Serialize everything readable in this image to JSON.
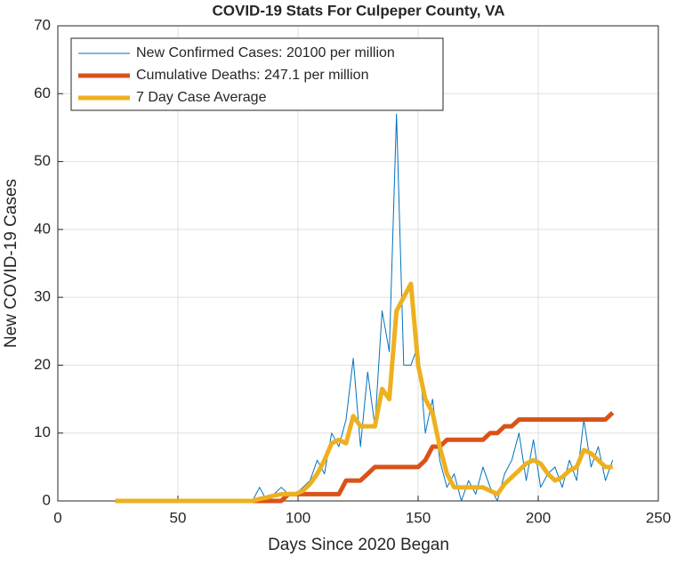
{
  "chart_data": {
    "type": "line",
    "title": "COVID-19 Stats For Culpeper County, VA",
    "x_label": "Days Since 2020 Began",
    "y_label": "New COVID-19 Cases",
    "x": [
      24,
      27,
      30,
      33,
      36,
      39,
      42,
      45,
      48,
      51,
      54,
      57,
      60,
      63,
      66,
      69,
      72,
      75,
      78,
      81,
      84,
      87,
      90,
      93,
      96,
      99,
      102,
      105,
      108,
      111,
      114,
      117,
      120,
      123,
      126,
      129,
      132,
      135,
      138,
      141,
      144,
      147,
      150,
      153,
      156,
      159,
      162,
      165,
      168,
      171,
      174,
      177,
      180,
      183,
      186,
      189,
      192,
      195,
      198,
      201,
      204,
      207,
      210,
      213,
      216,
      219,
      222,
      225,
      228,
      231
    ],
    "series": [
      {
        "name": "New Confirmed Cases: 20100 per million",
        "color": "#0072bd",
        "width": 1,
        "values": [
          0,
          0,
          0,
          0,
          0,
          0,
          0,
          0,
          0,
          0,
          0,
          0,
          0,
          0,
          0,
          0,
          0,
          0,
          0,
          0,
          2,
          0,
          1,
          2,
          1,
          1,
          2,
          3,
          6,
          4,
          10,
          8,
          12,
          21,
          8,
          19,
          11,
          28,
          22,
          57,
          20,
          20,
          23,
          10,
          15,
          6,
          2,
          4,
          0,
          3,
          1,
          5,
          2,
          0,
          4,
          6,
          10,
          3,
          9,
          2,
          4,
          5,
          2,
          6,
          3,
          12,
          5,
          8,
          3,
          6
        ]
      },
      {
        "name": "Cumulative Deaths: 247.1 per million",
        "color": "#d95319",
        "width": 5,
        "values": [
          0,
          0,
          0,
          0,
          0,
          0,
          0,
          0,
          0,
          0,
          0,
          0,
          0,
          0,
          0,
          0,
          0,
          0,
          0,
          0,
          0,
          0,
          0,
          0,
          1,
          1,
          1,
          1,
          1,
          1,
          1,
          1,
          3,
          3,
          3,
          4,
          5,
          5,
          5,
          5,
          5,
          5,
          5,
          6,
          8,
          8,
          9,
          9,
          9,
          9,
          9,
          9,
          10,
          10,
          11,
          11,
          12,
          12,
          12,
          12,
          12,
          12,
          12,
          12,
          12,
          12,
          12,
          12,
          12,
          13
        ]
      },
      {
        "name": "7 Day Case Average",
        "color": "#edb120",
        "width": 5,
        "values": [
          0,
          0,
          0,
          0,
          0,
          0,
          0,
          0,
          0,
          0,
          0,
          0,
          0,
          0,
          0,
          0,
          0,
          0,
          0,
          0,
          0.3,
          0.5,
          0.8,
          1,
          1,
          1,
          1.5,
          2.5,
          4,
          6,
          8.5,
          9,
          8.5,
          12.5,
          11,
          11,
          11,
          16.5,
          15,
          28,
          30,
          32,
          20,
          15,
          13,
          8,
          4,
          2,
          2,
          2,
          2,
          2,
          1.5,
          1,
          2.5,
          3.5,
          4.5,
          5.5,
          6,
          5.5,
          4,
          3,
          3.5,
          4.5,
          5,
          7.5,
          7,
          6,
          5,
          5
        ]
      }
    ],
    "xlim": [
      0,
      250
    ],
    "xticks": [
      0,
      50,
      100,
      150,
      200,
      250
    ],
    "ylim": [
      0,
      70
    ],
    "yticks": [
      0,
      10,
      20,
      30,
      40,
      50,
      60,
      70
    ],
    "grid": true,
    "legend": "upper left"
  }
}
